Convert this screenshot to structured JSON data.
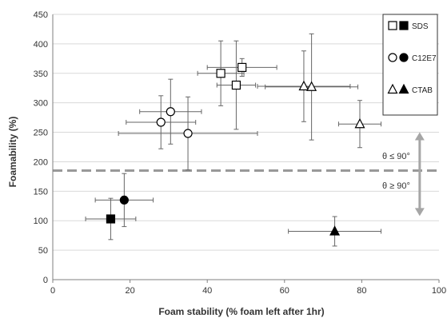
{
  "chart_data": {
    "type": "scatter",
    "xlabel": "Foam stability (% foam left after 1hr)",
    "ylabel": "Foamability (%)",
    "xlim": [
      0,
      100
    ],
    "ylim": [
      0,
      450
    ],
    "xticks": [
      0,
      20,
      40,
      60,
      80,
      100
    ],
    "yticks": [
      0,
      50,
      100,
      150,
      200,
      250,
      300,
      350,
      400,
      450
    ],
    "grid": "horizontal",
    "legend_position": "top-right",
    "series": [
      {
        "name": "SDS",
        "marker": "square",
        "points": [
          {
            "x": 43.5,
            "y": 350,
            "xerr": 6,
            "yerr": 55,
            "filled": false
          },
          {
            "x": 47.5,
            "y": 330,
            "xerr": 5,
            "yerr": 75,
            "filled": false
          },
          {
            "x": 49,
            "y": 360,
            "xerr": 9,
            "yerr": 15,
            "filled": false
          },
          {
            "x": 15,
            "y": 103,
            "xerr": 6.5,
            "yerr": 35,
            "filled": true
          }
        ]
      },
      {
        "name": "C12E7",
        "marker": "circle",
        "points": [
          {
            "x": 28,
            "y": 267,
            "xerr": 9,
            "yerr": 45,
            "filled": false
          },
          {
            "x": 30.5,
            "y": 285,
            "xerr": 8,
            "yerr": 55,
            "filled": false
          },
          {
            "x": 35,
            "y": 248,
            "xerr": 18,
            "yerr": 62,
            "filled": false
          },
          {
            "x": 18.5,
            "y": 135,
            "xerr": 7.5,
            "yerr": 45,
            "filled": true
          }
        ]
      },
      {
        "name": "CTAB",
        "marker": "triangle",
        "points": [
          {
            "x": 65,
            "y": 328,
            "xerr": 12,
            "yerr": 60,
            "filled": false
          },
          {
            "x": 67,
            "y": 327,
            "xerr": 12,
            "yerr": 90,
            "filled": false
          },
          {
            "x": 79.5,
            "y": 264,
            "xerr": 5.5,
            "yerr": 40,
            "filled": false
          },
          {
            "x": 73,
            "y": 82,
            "xerr": 12,
            "yerr": 25,
            "filled": true
          }
        ]
      }
    ],
    "reference_line": {
      "y": 185,
      "style": "dashed",
      "color": "#999999"
    },
    "annotations": [
      {
        "text": "θ ≤ 90°",
        "direction": "up"
      },
      {
        "text": "θ ≥ 90°",
        "direction": "down"
      }
    ],
    "arrow": {
      "x": 95,
      "y_from": 210,
      "y_to": 160,
      "top": 250,
      "bottom": 108
    },
    "colors": {
      "marker": "#000000",
      "errorbar": "#666666",
      "grid": "#d9d9d9",
      "axis": "#7f7f7f",
      "arrow": "#a6a6a6"
    }
  }
}
